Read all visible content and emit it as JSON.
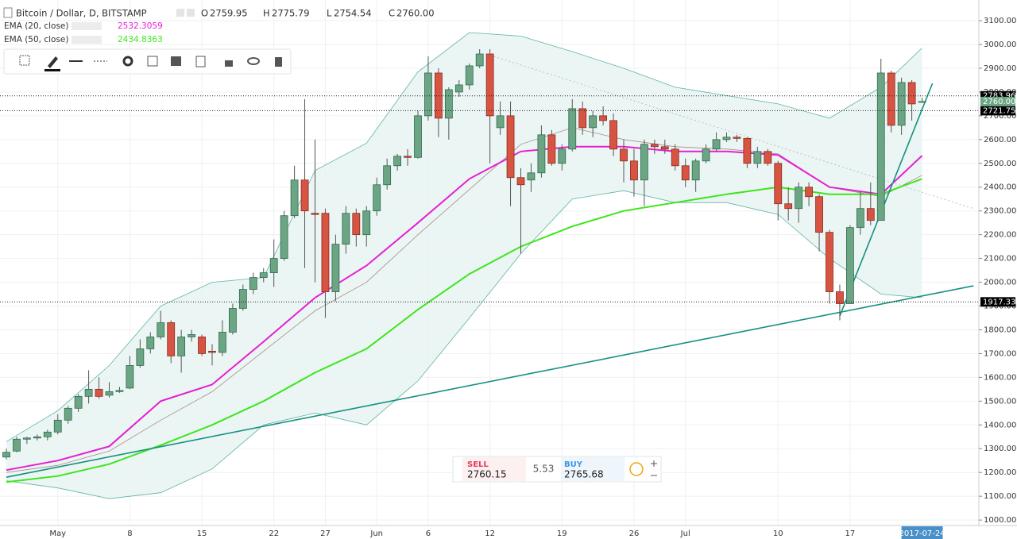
{
  "chart_data": {
    "type": "candlestick",
    "title": "Bitcoin / Dollar, D, BITSTAMP",
    "ohlc_legend": [
      {
        "key": "O",
        "text": "2759.95"
      },
      {
        "key": "H",
        "text": "2775.79"
      },
      {
        "key": "L",
        "text": "2754.54"
      },
      {
        "key": "C",
        "text": "2760.00"
      }
    ],
    "up_color": "#6ba583",
    "down_color": "#d75442",
    "x": [
      "2017-04-26",
      "2017-04-27",
      "2017-04-28",
      "2017-04-29",
      "2017-04-30",
      "2017-05-01",
      "2017-05-02",
      "2017-05-03",
      "2017-05-04",
      "2017-05-05",
      "2017-05-06",
      "2017-05-07",
      "2017-05-08",
      "2017-05-09",
      "2017-05-10",
      "2017-05-11",
      "2017-05-12",
      "2017-05-13",
      "2017-05-14",
      "2017-05-15",
      "2017-05-16",
      "2017-05-17",
      "2017-05-18",
      "2017-05-19",
      "2017-05-20",
      "2017-05-21",
      "2017-05-22",
      "2017-05-23",
      "2017-05-24",
      "2017-05-25",
      "2017-05-26",
      "2017-05-27",
      "2017-05-28",
      "2017-05-29",
      "2017-05-30",
      "2017-05-31",
      "2017-06-01",
      "2017-06-02",
      "2017-06-03",
      "2017-06-04",
      "2017-06-05",
      "2017-06-06",
      "2017-06-07",
      "2017-06-08",
      "2017-06-09",
      "2017-06-10",
      "2017-06-11",
      "2017-06-12",
      "2017-06-13",
      "2017-06-14",
      "2017-06-15",
      "2017-06-16",
      "2017-06-17",
      "2017-06-18",
      "2017-06-19",
      "2017-06-20",
      "2017-06-21",
      "2017-06-22",
      "2017-06-23",
      "2017-06-24",
      "2017-06-25",
      "2017-06-26",
      "2017-06-27",
      "2017-06-28",
      "2017-06-29",
      "2017-06-30",
      "2017-07-01",
      "2017-07-02",
      "2017-07-03",
      "2017-07-04",
      "2017-07-05",
      "2017-07-06",
      "2017-07-07",
      "2017-07-08",
      "2017-07-09",
      "2017-07-10",
      "2017-07-11",
      "2017-07-12",
      "2017-07-13",
      "2017-07-14",
      "2017-07-15",
      "2017-07-16",
      "2017-07-17",
      "2017-07-18",
      "2017-07-19",
      "2017-07-20",
      "2017-07-21",
      "2017-07-22",
      "2017-07-23",
      "2017-07-24"
    ],
    "open": [
      1265,
      1290,
      1340,
      1345,
      1350,
      1370,
      1420,
      1470,
      1520,
      1550,
      1525,
      1540,
      1555,
      1650,
      1720,
      1770,
      1830,
      1690,
      1770,
      1770,
      1710,
      1705,
      1790,
      1890,
      1970,
      2020,
      2040,
      2100,
      2280,
      2430,
      2290,
      2290,
      1960,
      2160,
      2290,
      2200,
      2300,
      2410,
      2490,
      2530,
      2525,
      2700,
      2880,
      2690,
      2800,
      2830,
      2910,
      2960,
      2650,
      2700,
      2440,
      2430,
      2460,
      2620,
      2500,
      2560,
      2730,
      2650,
      2700,
      2680,
      2560,
      2510,
      2430,
      2580,
      2570,
      2560,
      2490,
      2430,
      2510,
      2560,
      2600,
      2610,
      2605,
      2500,
      2550,
      2500,
      2330,
      2310,
      2400,
      2360,
      2210,
      1960,
      1910,
      2230,
      2310,
      2260,
      2880,
      2660,
      2840,
      2759.95
    ],
    "high": [
      1300,
      1350,
      1350,
      1360,
      1380,
      1445,
      1480,
      1530,
      1630,
      1600,
      1580,
      1560,
      1690,
      1760,
      1790,
      1880,
      1840,
      1800,
      1800,
      1780,
      1740,
      1840,
      1910,
      1990,
      2040,
      2060,
      2180,
      2300,
      2490,
      2770,
      2600,
      2310,
      2200,
      2320,
      2310,
      2320,
      2440,
      2520,
      2540,
      2560,
      2720,
      2950,
      2900,
      2820,
      2850,
      2920,
      2980,
      2980,
      2760,
      2760,
      2480,
      2500,
      2660,
      2640,
      2580,
      2770,
      2760,
      2720,
      2740,
      2710,
      2600,
      2560,
      2600,
      2600,
      2600,
      2580,
      2520,
      2520,
      2580,
      2630,
      2630,
      2620,
      2610,
      2570,
      2560,
      2510,
      2400,
      2420,
      2420,
      2370,
      2220,
      1990,
      2240,
      2380,
      2420,
      2940,
      2890,
      2860,
      2850,
      2775.79
    ],
    "low": [
      1255,
      1285,
      1320,
      1335,
      1335,
      1360,
      1405,
      1455,
      1490,
      1510,
      1515,
      1535,
      1550,
      1640,
      1700,
      1760,
      1660,
      1620,
      1750,
      1690,
      1650,
      1690,
      1780,
      1880,
      1950,
      2000,
      1980,
      2090,
      2270,
      2060,
      2000,
      1850,
      1920,
      2120,
      2150,
      2150,
      2280,
      2390,
      2470,
      2490,
      2520,
      2680,
      2610,
      2600,
      2780,
      2810,
      2900,
      2500,
      2620,
      2320,
      2120,
      2380,
      2440,
      2490,
      2470,
      2550,
      2620,
      2610,
      2660,
      2530,
      2420,
      2360,
      2320,
      2540,
      2540,
      2470,
      2400,
      2380,
      2500,
      2550,
      2590,
      2590,
      2480,
      2480,
      2490,
      2260,
      2260,
      2250,
      2320,
      2130,
      1910,
      1840,
      1910,
      2200,
      2240,
      2260,
      2630,
      2620,
      2680,
      2754.54
    ],
    "close": [
      1285,
      1340,
      1345,
      1350,
      1370,
      1420,
      1470,
      1520,
      1550,
      1520,
      1540,
      1545,
      1650,
      1720,
      1770,
      1830,
      1690,
      1770,
      1780,
      1700,
      1705,
      1790,
      1890,
      1970,
      2020,
      2040,
      2100,
      2280,
      2430,
      2300,
      2285,
      1960,
      2160,
      2290,
      2200,
      2300,
      2410,
      2490,
      2530,
      2525,
      2700,
      2880,
      2690,
      2810,
      2830,
      2910,
      2960,
      2700,
      2700,
      2440,
      2410,
      2460,
      2620,
      2500,
      2560,
      2730,
      2650,
      2700,
      2680,
      2560,
      2510,
      2430,
      2580,
      2570,
      2560,
      2490,
      2430,
      2510,
      2560,
      2600,
      2610,
      2605,
      2500,
      2550,
      2500,
      2330,
      2310,
      2400,
      2360,
      2210,
      1960,
      1910,
      2230,
      2310,
      2260,
      2880,
      2660,
      2840,
      2750,
      2760
    ],
    "bollinger": {
      "color": "#5fb3a6",
      "fill": "#e6f4f1",
      "basis_color": "#a98c84",
      "x": [
        "2017-04-26",
        "2017-05-01",
        "2017-05-06",
        "2017-05-11",
        "2017-05-16",
        "2017-05-21",
        "2017-05-26",
        "2017-05-31",
        "2017-06-05",
        "2017-06-10",
        "2017-06-15",
        "2017-06-20",
        "2017-06-25",
        "2017-06-30",
        "2017-07-05",
        "2017-07-10",
        "2017-07-15",
        "2017-07-20",
        "2017-07-24"
      ],
      "upper": [
        1330,
        1460,
        1650,
        1900,
        2000,
        2020,
        2470,
        2585,
        2885,
        3050,
        3035,
        2970,
        2900,
        2820,
        2785,
        2750,
        2690,
        2820,
        2985
      ],
      "lower": [
        1165,
        1135,
        1090,
        1115,
        1215,
        1400,
        1450,
        1400,
        1585,
        1850,
        2120,
        2350,
        2385,
        2335,
        2335,
        2285,
        2100,
        1950,
        1935
      ],
      "basis": [
        1200,
        1230,
        1290,
        1420,
        1540,
        1710,
        1880,
        2000,
        2200,
        2390,
        2580,
        2650,
        2600,
        2570,
        2560,
        2540,
        2400,
        2360,
        2450
      ]
    },
    "indicators": [
      {
        "name": "EMA (20, close)",
        "color": "#e61ed3",
        "x": [
          "2017-04-26",
          "2017-05-01",
          "2017-05-06",
          "2017-05-11",
          "2017-05-16",
          "2017-05-21",
          "2017-05-26",
          "2017-05-31",
          "2017-06-05",
          "2017-06-10",
          "2017-06-15",
          "2017-06-20",
          "2017-06-25",
          "2017-06-30",
          "2017-07-05",
          "2017-07-10",
          "2017-07-15",
          "2017-07-20",
          "2017-07-24"
        ],
        "values": [
          1210,
          1250,
          1310,
          1500,
          1570,
          1750,
          1935,
          2070,
          2250,
          2435,
          2550,
          2570,
          2570,
          2550,
          2550,
          2535,
          2400,
          2370,
          2532.3059
        ]
      },
      {
        "name": "EMA (50, close)",
        "color": "#3ee51c",
        "x": [
          "2017-04-26",
          "2017-05-01",
          "2017-05-06",
          "2017-05-11",
          "2017-05-16",
          "2017-05-21",
          "2017-05-26",
          "2017-05-31",
          "2017-06-05",
          "2017-06-10",
          "2017-06-15",
          "2017-06-20",
          "2017-06-25",
          "2017-06-30",
          "2017-07-05",
          "2017-07-10",
          "2017-07-15",
          "2017-07-20",
          "2017-07-24"
        ],
        "values": [
          1160,
          1185,
          1235,
          1315,
          1400,
          1500,
          1620,
          1720,
          1885,
          2035,
          2150,
          2235,
          2300,
          2335,
          2370,
          2400,
          2370,
          2370,
          2434.8363
        ]
      }
    ],
    "trend_lines": [
      {
        "x": [
          "2017-04-26",
          "2017-07-29"
        ],
        "values": [
          1180,
          1985
        ],
        "color": "#16907f",
        "dash": false
      },
      {
        "x": [
          "2017-07-16",
          "2017-07-25"
        ],
        "values": [
          1858,
          2836
        ],
        "color": "#16907f",
        "dash": false
      },
      {
        "x": [
          "2017-06-12",
          "2017-07-29"
        ],
        "values": [
          2955,
          2310
        ],
        "color": "#b7c0bc",
        "dash": true
      }
    ],
    "levels": [
      2783.96,
      2721.75,
      1917.33
    ],
    "last_price": {
      "value": 2760,
      "label": "2760.00"
    },
    "crosshair_date": "2017-07-24",
    "ylim": [
      977,
      3187
    ],
    "yticks": [
      {
        "value": 1000,
        "label": "1000.00"
      },
      {
        "value": 1100,
        "label": "1100.00"
      },
      {
        "value": 1200,
        "label": "1200.00"
      },
      {
        "value": 1300,
        "label": "1300.00"
      },
      {
        "value": 1400,
        "label": "1400.00"
      },
      {
        "value": 1500,
        "label": "1500.00"
      },
      {
        "value": 1600,
        "label": "1600.00"
      },
      {
        "value": 1700,
        "label": "1700.00"
      },
      {
        "value": 1800,
        "label": "1800.00"
      },
      {
        "value": 1900,
        "label": "1900.00"
      },
      {
        "value": 2000,
        "label": "2000.00"
      },
      {
        "value": 2100,
        "label": "2100.00"
      },
      {
        "value": 2200,
        "label": "2200.00"
      },
      {
        "value": 2300,
        "label": "2300.00"
      },
      {
        "value": 2400,
        "label": "2400.00"
      },
      {
        "value": 2500,
        "label": "2500.00"
      },
      {
        "value": 2600,
        "label": "2600.00"
      },
      {
        "value": 2700,
        "label": "2700.00"
      },
      {
        "value": 2800,
        "label": "2800.00"
      },
      {
        "value": 2900,
        "label": "2900.00"
      },
      {
        "value": 3000,
        "label": "3000.00"
      },
      {
        "value": 3100,
        "label": "3100.00"
      }
    ],
    "xticks": [
      {
        "value": "2017-05-01",
        "label": "May"
      },
      {
        "value": "2017-05-08",
        "label": "8"
      },
      {
        "value": "2017-05-15",
        "label": "15"
      },
      {
        "value": "2017-05-22",
        "label": "22"
      },
      {
        "value": "2017-05-27",
        "label": "27"
      },
      {
        "value": "2017-06-01",
        "label": "Jun"
      },
      {
        "value": "2017-06-06",
        "label": "6"
      },
      {
        "value": "2017-06-12",
        "label": "12"
      },
      {
        "value": "2017-06-19",
        "label": "19"
      },
      {
        "value": "2017-06-26",
        "label": "26"
      },
      {
        "value": "2017-07-01",
        "label": "Jul"
      },
      {
        "value": "2017-07-10",
        "label": "10"
      },
      {
        "value": "2017-07-17",
        "label": "17"
      }
    ],
    "grid": true,
    "trade_panel": {
      "sell_label": "SELL",
      "sell_price": "2760.15",
      "spread": "5.53",
      "buy_label": "BUY",
      "buy_price": "2765.68"
    }
  }
}
